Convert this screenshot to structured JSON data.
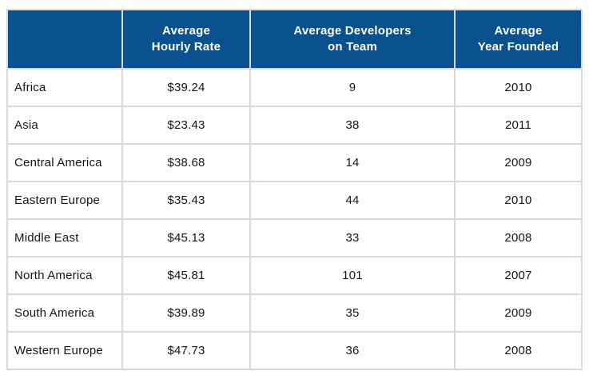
{
  "table": {
    "headers": {
      "region": "",
      "hourly_rate": "Average\nHourly Rate",
      "developers": "Average Developers\non Team",
      "year_founded": "Average\nYear Founded"
    },
    "rows": [
      {
        "region": "Africa",
        "hourly_rate": "$39.24",
        "developers": "9",
        "year_founded": "2010"
      },
      {
        "region": "Asia",
        "hourly_rate": "$23.43",
        "developers": "38",
        "year_founded": "2011"
      },
      {
        "region": "Central America",
        "hourly_rate": "$38.68",
        "developers": "14",
        "year_founded": "2009"
      },
      {
        "region": "Eastern Europe",
        "hourly_rate": "$35.43",
        "developers": "44",
        "year_founded": "2010"
      },
      {
        "region": "Middle East",
        "hourly_rate": "$45.13",
        "developers": "33",
        "year_founded": "2008"
      },
      {
        "region": "North America",
        "hourly_rate": "$45.81",
        "developers": "101",
        "year_founded": "2007"
      },
      {
        "region": "South America",
        "hourly_rate": "$39.89",
        "developers": "35",
        "year_founded": "2009"
      },
      {
        "region": "Western Europe",
        "hourly_rate": "$47.73",
        "developers": "36",
        "year_founded": "2008"
      }
    ]
  },
  "colors": {
    "header_bg": "#0a5190",
    "header_text": "#ffffff",
    "grid": "#d9d9d9",
    "body_text": "#161616",
    "body_bg": "#ffffff"
  },
  "chart_data": {
    "type": "table",
    "title": "",
    "columns": [
      "",
      "Average Hourly Rate",
      "Average Developers on Team",
      "Average Year Founded"
    ],
    "rows": [
      [
        "Africa",
        39.24,
        9,
        2010
      ],
      [
        "Asia",
        23.43,
        38,
        2011
      ],
      [
        "Central America",
        38.68,
        14,
        2009
      ],
      [
        "Eastern Europe",
        35.43,
        44,
        2010
      ],
      [
        "Middle East",
        45.13,
        33,
        2008
      ],
      [
        "North America",
        45.81,
        101,
        2007
      ],
      [
        "South America",
        39.89,
        35,
        2009
      ],
      [
        "Western Europe",
        47.73,
        36,
        2008
      ]
    ]
  }
}
